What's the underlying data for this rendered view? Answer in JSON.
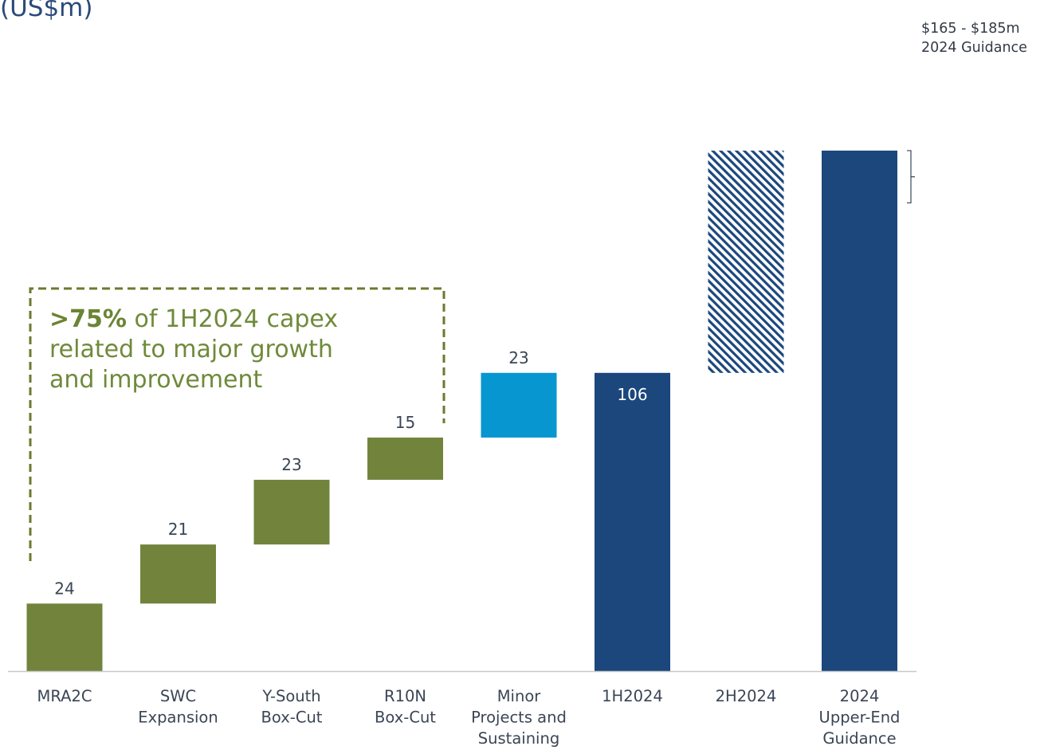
{
  "unit_label": "(US$m)",
  "callout": {
    "highlight": ">75%",
    "text": " of 1H2024 capex related to major growth and improvement"
  },
  "guidance_note": {
    "line1": "$165 - $185m",
    "line2": "2024 Guidance"
  },
  "colors": {
    "growth": "#72843c",
    "minor": "#0796d0",
    "total": "#1b477d",
    "hatch": "#1b477d",
    "axis": "#c8c8c8",
    "label": "#3a4555",
    "dashed": "#6b7a2e"
  },
  "chart_data": {
    "type": "bar",
    "subtype": "waterfall",
    "categories": [
      "MRA2C",
      "SWC Expansion",
      "Y-South Box-Cut",
      "R10N Box-Cut",
      "Minor Projects and Sustaining",
      "1H2024",
      "2H2024",
      "2024 Upper-End Guidance"
    ],
    "category_lines": [
      [
        "MRA2C"
      ],
      [
        "SWC",
        "Expansion"
      ],
      [
        "Y-South",
        "Box-Cut"
      ],
      [
        "R10N",
        "Box-Cut"
      ],
      [
        "Minor",
        "Projects and",
        "Sustaining"
      ],
      [
        "1H2024"
      ],
      [
        "2H2024"
      ],
      [
        "2024",
        "Upper-End",
        "Guidance"
      ]
    ],
    "values": [
      24,
      21,
      23,
      15,
      23,
      106,
      79,
      185
    ],
    "value_labels": [
      "24",
      "21",
      "23",
      "15",
      "23",
      "106",
      "",
      ""
    ],
    "bar_kinds": [
      "growth",
      "growth",
      "growth",
      "growth",
      "minor",
      "total",
      "hatched",
      "total"
    ],
    "waterfall_ranges": [
      [
        0,
        24
      ],
      [
        24,
        45
      ],
      [
        45,
        68
      ],
      [
        68,
        83
      ],
      [
        83,
        106
      ],
      [
        0,
        106
      ],
      [
        106,
        185
      ],
      [
        0,
        185
      ]
    ],
    "guidance_range": [
      165,
      185
    ],
    "ylim": [
      0,
      190
    ],
    "grid": false,
    "title": "",
    "xlabel": "",
    "ylabel": ""
  }
}
